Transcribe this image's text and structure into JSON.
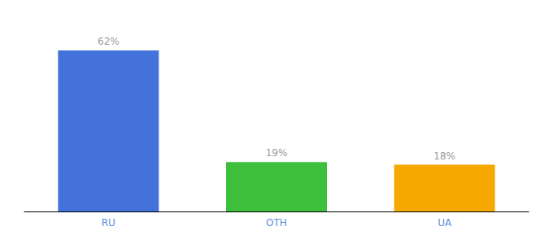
{
  "chart_data": {
    "type": "bar",
    "categories": [
      "RU",
      "OTH",
      "UA"
    ],
    "values": [
      62,
      19,
      18
    ],
    "value_labels": [
      "62%",
      "19%",
      "18%"
    ],
    "colors": [
      "#4472db",
      "#3dbf3d",
      "#f5a800"
    ],
    "ylim": [
      0,
      72
    ],
    "grid": false,
    "data_labels": true,
    "tick_labels": "x"
  }
}
